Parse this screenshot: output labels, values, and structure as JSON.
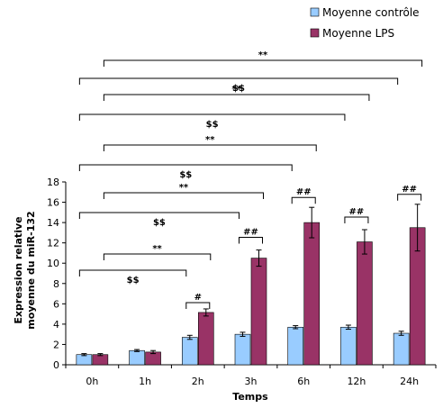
{
  "chart_data": {
    "type": "bar",
    "categories": [
      "0h",
      "1h",
      "2h",
      "3h",
      "6h",
      "12h",
      "24h"
    ],
    "series": [
      {
        "name": "Moyenne contrôle",
        "values": [
          1.0,
          1.4,
          2.7,
          3.0,
          3.7,
          3.7,
          3.1
        ],
        "errors": [
          0.1,
          0.1,
          0.2,
          0.2,
          0.15,
          0.2,
          0.2
        ],
        "color": "#99ccff"
      },
      {
        "name": "Moyenne LPS",
        "values": [
          1.0,
          1.25,
          5.15,
          10.5,
          14.0,
          12.1,
          13.5
        ],
        "errors": [
          0.1,
          0.15,
          0.35,
          0.8,
          1.5,
          1.2,
          2.3
        ],
        "color": "#993366"
      }
    ],
    "xlabel": "Temps",
    "ylabel": "Expression relative moyenne du miR-132",
    "ylabel_lines": [
      "Expression relative",
      "moyenne du miR-132"
    ],
    "ylim": [
      0,
      18
    ],
    "yticks": [
      0,
      2,
      4,
      6,
      8,
      10,
      12,
      14,
      16,
      18
    ],
    "grid": false,
    "legend_position": "top-right",
    "pair_annotations": [
      {
        "category": "2h",
        "label": "#"
      },
      {
        "category": "3h",
        "label": "##"
      },
      {
        "category": "6h",
        "label": "##"
      },
      {
        "category": "12h",
        "label": "##"
      },
      {
        "category": "24h",
        "label": "##"
      }
    ],
    "comparison_annotations": [
      {
        "from": "0h",
        "to": "2h",
        "series": "Moyenne contrôle",
        "label": "$$"
      },
      {
        "from": "0h",
        "to": "2h",
        "series": "Moyenne LPS",
        "label": "**"
      },
      {
        "from": "0h",
        "to": "3h",
        "series": "Moyenne contrôle",
        "label": "$$"
      },
      {
        "from": "0h",
        "to": "3h",
        "series": "Moyenne LPS",
        "label": "**"
      },
      {
        "from": "0h",
        "to": "6h",
        "series": "Moyenne contrôle",
        "label": "$$"
      },
      {
        "from": "0h",
        "to": "6h",
        "series": "Moyenne LPS",
        "label": "**"
      },
      {
        "from": "0h",
        "to": "12h",
        "series": "Moyenne contrôle",
        "label": "$$"
      },
      {
        "from": "0h",
        "to": "12h",
        "series": "Moyenne LPS",
        "label": "**"
      },
      {
        "from": "0h",
        "to": "24h",
        "series": "Moyenne contrôle",
        "label": "$$"
      },
      {
        "from": "0h",
        "to": "24h",
        "series": "Moyenne LPS",
        "label": "**"
      }
    ]
  }
}
